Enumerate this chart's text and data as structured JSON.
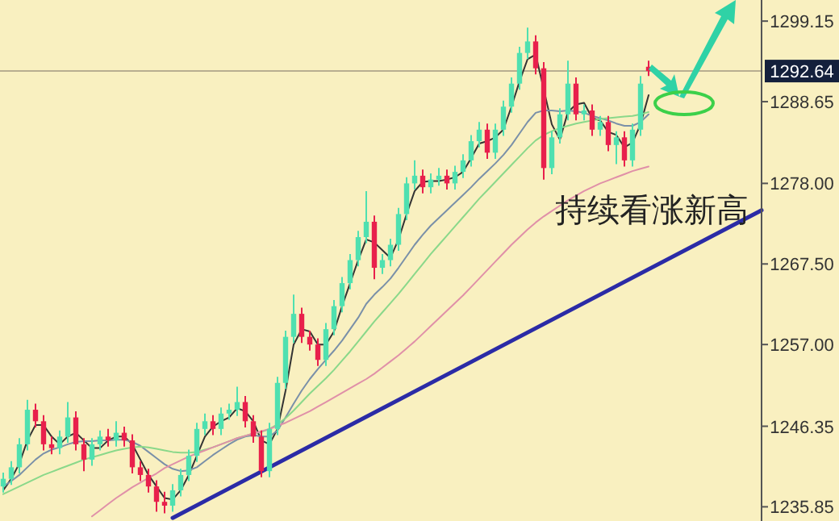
{
  "chart_data": {
    "type": "candlestick",
    "categories": [
      null,
      null,
      null,
      null,
      null,
      null,
      null,
      null,
      null,
      null,
      null,
      null,
      null,
      null,
      null,
      null,
      null,
      null,
      null,
      null,
      null,
      null,
      null,
      null,
      null,
      null,
      null,
      null,
      null,
      null,
      null,
      null,
      null,
      null,
      null,
      null,
      null,
      null,
      null,
      null,
      null,
      null,
      null,
      null,
      null,
      null,
      null,
      null,
      null,
      null,
      null,
      null,
      null,
      null,
      null,
      null,
      null,
      null,
      null,
      null,
      null,
      null,
      null,
      null,
      null,
      null,
      null,
      null,
      null,
      null,
      null,
      null,
      null,
      null,
      null,
      null,
      null,
      null,
      null,
      null,
      null,
      null,
      null,
      null,
      null,
      null,
      null,
      null,
      null,
      null,
      null,
      null,
      null,
      null,
      null
    ],
    "ohlc": [
      [
        1238.5,
        1240.3,
        1237.7,
        1239.5
      ],
      [
        1239.5,
        1241.8,
        1238.7,
        1241
      ],
      [
        1241,
        1244.8,
        1240.2,
        1244
      ],
      [
        1244,
        1249.8,
        1243.2,
        1248.5
      ],
      [
        1248.5,
        1249.3,
        1246.2,
        1247
      ],
      [
        1247,
        1247.8,
        1243.2,
        1244
      ],
      [
        1244,
        1245,
        1242.7,
        1243.5
      ],
      [
        1243.5,
        1245.8,
        1242.7,
        1245
      ],
      [
        1245,
        1249.5,
        1244.2,
        1247.5
      ],
      [
        1247.5,
        1248.3,
        1243.2,
        1244
      ],
      [
        1244,
        1244.8,
        1240.5,
        1242
      ],
      [
        1242,
        1244.8,
        1241.2,
        1244
      ],
      [
        1244,
        1245.8,
        1243.2,
        1245
      ],
      [
        1245,
        1246,
        1243.7,
        1244.5
      ],
      [
        1244.5,
        1247,
        1243.7,
        1245.5
      ],
      [
        1245.5,
        1246.3,
        1243.7,
        1244.5
      ],
      [
        1244.5,
        1245.3,
        1240.2,
        1241
      ],
      [
        1241,
        1241.8,
        1239.2,
        1240
      ],
      [
        1240,
        1240.8,
        1237.7,
        1238.5
      ],
      [
        1238.5,
        1239.3,
        1235.2,
        1236.5
      ],
      [
        1236.5,
        1237.8,
        1235,
        1236
      ],
      [
        1236,
        1238.8,
        1235.2,
        1238
      ],
      [
        1238,
        1240.8,
        1237.2,
        1240
      ],
      [
        1240,
        1243.3,
        1239.2,
        1242.5
      ],
      [
        1242.5,
        1246.8,
        1241.7,
        1246
      ],
      [
        1246,
        1248,
        1245.2,
        1247
      ],
      [
        1247,
        1247.8,
        1245.2,
        1246
      ],
      [
        1246,
        1248.8,
        1245.2,
        1248
      ],
      [
        1248,
        1249.3,
        1247.2,
        1248.5
      ],
      [
        1248.5,
        1251.5,
        1247.7,
        1249.5
      ],
      [
        1249.5,
        1250.3,
        1246.2,
        1247
      ],
      [
        1247,
        1247.8,
        1244.2,
        1245
      ],
      [
        1245,
        1245.8,
        1239.7,
        1240.5
      ],
      [
        1240.5,
        1246.8,
        1239.7,
        1246
      ],
      [
        1246,
        1252.8,
        1245.2,
        1252
      ],
      [
        1252,
        1258.8,
        1251.2,
        1258
      ],
      [
        1258,
        1263.5,
        1257.2,
        1261
      ],
      [
        1261,
        1261.8,
        1257.2,
        1258
      ],
      [
        1258,
        1258.8,
        1256.2,
        1257
      ],
      [
        1257,
        1257.8,
        1254.2,
        1255
      ],
      [
        1255,
        1259.8,
        1254.2,
        1259
      ],
      [
        1259,
        1262.8,
        1258.2,
        1262
      ],
      [
        1262,
        1265.8,
        1261.2,
        1265
      ],
      [
        1265,
        1268.8,
        1264.2,
        1268
      ],
      [
        1268,
        1271.8,
        1267.2,
        1271
      ],
      [
        1271,
        1277,
        1270.2,
        1273
      ],
      [
        1273,
        1273.8,
        1265.5,
        1267
      ],
      [
        1267,
        1268.8,
        1266.2,
        1268
      ],
      [
        1268,
        1270.8,
        1267.2,
        1270
      ],
      [
        1270,
        1274.8,
        1269.2,
        1274
      ],
      [
        1274,
        1278.8,
        1273.2,
        1278
      ],
      [
        1278,
        1281,
        1277.2,
        1279
      ],
      [
        1279,
        1279.8,
        1276.7,
        1277.5
      ],
      [
        1277.5,
        1279.3,
        1276.7,
        1278.5
      ],
      [
        1278.5,
        1280,
        1277.7,
        1279
      ],
      [
        1279,
        1279.8,
        1277.2,
        1278
      ],
      [
        1278,
        1280.3,
        1277.2,
        1279.5
      ],
      [
        1279.5,
        1281.8,
        1278.7,
        1281
      ],
      [
        1281,
        1284.3,
        1280.2,
        1283.5
      ],
      [
        1283.5,
        1286,
        1282.7,
        1285
      ],
      [
        1285,
        1285.8,
        1281.2,
        1282
      ],
      [
        1282,
        1285.8,
        1281.2,
        1285
      ],
      [
        1285,
        1288.8,
        1284.2,
        1288
      ],
      [
        1288,
        1291.8,
        1287.2,
        1291
      ],
      [
        1291,
        1295.8,
        1290.2,
        1295
      ],
      [
        1295,
        1298.3,
        1294.2,
        1296.5
      ],
      [
        1296.5,
        1297.3,
        1292.2,
        1293
      ],
      [
        1293,
        1293.8,
        1278.5,
        1280
      ],
      [
        1280,
        1284.8,
        1279.2,
        1284
      ],
      [
        1284,
        1287.8,
        1283.2,
        1287
      ],
      [
        1287,
        1294,
        1286.2,
        1291
      ],
      [
        1291,
        1291.8,
        1286.2,
        1287
      ],
      [
        1287,
        1288.3,
        1286.2,
        1287.5
      ],
      [
        1287.5,
        1288.3,
        1284.2,
        1285
      ],
      [
        1285,
        1286.8,
        1284.2,
        1286
      ],
      [
        1286,
        1286.8,
        1282.2,
        1283
      ],
      [
        1283,
        1284.8,
        1280.5,
        1284
      ],
      [
        1284,
        1284.8,
        1280.2,
        1281
      ],
      [
        1281,
        1285.8,
        1280.2,
        1285
      ],
      [
        1285,
        1292,
        1284.2,
        1291
      ],
      [
        1293.2,
        1294,
        1292,
        1292.64
      ],
      null,
      null,
      null,
      null,
      null,
      null,
      null,
      null,
      null,
      null,
      null,
      null,
      null,
      null
    ],
    "series": [
      {
        "type": "line",
        "color": "#333333",
        "values": [
          1238,
          1239.5,
          1241.5,
          1244.5,
          1246.5,
          1246.5,
          1245,
          1244,
          1245,
          1245.5,
          1244.5,
          1243.5,
          1243.5,
          1244.5,
          1245,
          1245,
          1244,
          1242,
          1240,
          1238.5,
          1237,
          1236.8,
          1238,
          1240,
          1242.5,
          1245,
          1246.3,
          1247,
          1247.5,
          1248.7,
          1248.3,
          1247,
          1244.5,
          1244,
          1246,
          1251,
          1257,
          1259,
          1258.7,
          1257,
          1257,
          1258.7,
          1262,
          1265,
          1268,
          1270.7,
          1270.3,
          1269.3,
          1268.3,
          1270.7,
          1274,
          1277,
          1278.2,
          1278.3,
          1278.3,
          1278.5,
          1278.8,
          1279.5,
          1281.3,
          1283.2,
          1283.5,
          1284,
          1285,
          1288,
          1291.3,
          1294.2,
          1294.8,
          null,
          1285.7,
          1283.7,
          1287.3,
          1288.3,
          1288.5,
          1286.5,
          1286.2,
          1284.7,
          1284.3,
          1282.7,
          1283.3,
          1285.7,
          1289.5,
          null,
          null,
          null,
          null,
          null,
          null,
          null,
          null,
          null,
          null,
          null,
          null,
          null,
          null
        ]
      },
      {
        "type": "line",
        "color": "#7a90a8",
        "values": [
          1238.5,
          1239.2,
          1240,
          1241,
          1242,
          1242.8,
          1243.3,
          1243.6,
          1244,
          1244.3,
          1244.4,
          1244.4,
          1244.5,
          1244.5,
          1244.6,
          1244.6,
          1244.3,
          1243.8,
          1243,
          1242.2,
          1241.4,
          1240.8,
          1240.5,
          1240.6,
          1241,
          1241.8,
          1242.6,
          1243.3,
          1244,
          1244.6,
          1245,
          1245.2,
          1245,
          1245,
          1245.8,
          1247.5,
          1249.3,
          1251,
          1252.5,
          1253.8,
          1255,
          1256.2,
          1257.5,
          1259,
          1260.5,
          1262.3,
          1263.5,
          1264.5,
          1265.6,
          1267,
          1268.5,
          1270,
          1271.3,
          1272.5,
          1273.5,
          1274.5,
          1275.5,
          1276.5,
          1277.5,
          1278.6,
          1279.6,
          1280.6,
          1281.7,
          1283,
          1284.5,
          1286,
          1287.2,
          1287.5,
          1287.5,
          1287.4,
          1287.5,
          1287.4,
          1287.2,
          1286.8,
          1286.5,
          1286.2,
          1285.8,
          1285.5,
          1285.5,
          1286,
          1287,
          null,
          null,
          null,
          null,
          null,
          null,
          null,
          null,
          null,
          null,
          null,
          null,
          null,
          null
        ]
      },
      {
        "type": "line",
        "color": "#8ad88a",
        "values": [
          1237.5,
          1238,
          1238.5,
          1239,
          1239.5,
          1240,
          1240.4,
          1240.8,
          1241.2,
          1241.6,
          1242,
          1242.3,
          1242.6,
          1242.9,
          1243.2,
          1243.4,
          1243.6,
          1243.7,
          1243.6,
          1243.4,
          1243.2,
          1243,
          1242.9,
          1242.9,
          1243,
          1243.3,
          1243.6,
          1244,
          1244.4,
          1244.8,
          1245.1,
          1245.4,
          1245.6,
          1246,
          1246.6,
          1247.4,
          1248.4,
          1249.5,
          1250.6,
          1251.6,
          1252.6,
          1253.7,
          1254.9,
          1256.1,
          1257.4,
          1258.7,
          1260,
          1261.2,
          1262.4,
          1263.6,
          1264.9,
          1266.2,
          1267.5,
          1268.8,
          1270,
          1271.2,
          1272.4,
          1273.6,
          1274.8,
          1276,
          1277.1,
          1278.2,
          1279.3,
          1280.4,
          1281.5,
          1282.6,
          1283.6,
          1284.3,
          1284.8,
          1285.2,
          1285.5,
          1285.8,
          1286,
          1286.2,
          1286.4,
          1286.5,
          1286.6,
          1286.7,
          1286.8,
          1287,
          1287.3,
          null,
          null,
          null,
          null,
          null,
          null,
          null,
          null,
          null,
          null,
          null,
          null,
          null,
          null
        ]
      },
      {
        "type": "line",
        "color": "#e090a8",
        "values": [
          null,
          null,
          null,
          null,
          null,
          null,
          null,
          null,
          null,
          null,
          null,
          1234.6,
          1235.4,
          1236.2,
          1237,
          1237.7,
          1238.4,
          1239,
          1239.6,
          1240.2,
          1240.9,
          1241.4,
          1241.9,
          1242.4,
          1242.8,
          1243.2,
          1243.6,
          1244,
          1244.4,
          1244.8,
          1245.1,
          1245.4,
          1245.7,
          1246,
          1246.4,
          1246.8,
          1247.3,
          1247.8,
          1248.3,
          1248.9,
          1249.5,
          1250.1,
          1250.7,
          1251.3,
          1251.9,
          1252.5,
          1253.2,
          1254,
          1254.8,
          1255.6,
          1256.5,
          1257.4,
          1258.4,
          1259.4,
          1260.4,
          1261.4,
          1262.4,
          1263.4,
          1264.5,
          1265.6,
          1266.7,
          1267.8,
          1268.9,
          1270,
          1271,
          1272,
          1272.9,
          1273.7,
          1274.4,
          1275.1,
          1275.8,
          1276.4,
          1277,
          1277.5,
          1278,
          1278.4,
          1278.8,
          1279.2,
          1279.6,
          1279.9,
          1280.2,
          null,
          null,
          null,
          null,
          null,
          null,
          null,
          null,
          null,
          null,
          null,
          null,
          null,
          null
        ]
      },
      {
        "type": "line",
        "color": "#2b2ba6",
        "values": [
          null,
          null,
          null,
          null,
          null,
          null,
          null,
          null,
          null,
          null,
          null,
          null,
          null,
          null,
          null,
          null,
          null,
          null,
          null,
          null,
          null,
          1234.4,
          null,
          null,
          null,
          null,
          null,
          null,
          null,
          null,
          null,
          null,
          null,
          null,
          null,
          null,
          null,
          null,
          null,
          null,
          null,
          null,
          null,
          null,
          null,
          null,
          null,
          null,
          null,
          null,
          null,
          null,
          null,
          null,
          null,
          null,
          null,
          null,
          null,
          null,
          null,
          null,
          null,
          null,
          null,
          null,
          null,
          null,
          null,
          null,
          null,
          null,
          null,
          null,
          null,
          null,
          null,
          null,
          null,
          null,
          null,
          null,
          null,
          null,
          null,
          null,
          null,
          null,
          null,
          null,
          null,
          null,
          null,
          null,
          1274.5
        ]
      }
    ],
    "ylim": [
      1234.0,
      1301.9
    ],
    "yticks": [
      1299.15,
      1288.65,
      {
        "value": 1278,
        "label": "1278.00"
      },
      {
        "value": 1267.5,
        "label": "1267.50"
      },
      {
        "value": 1257,
        "label": "1257.00"
      },
      1246.35,
      1235.85
    ],
    "ref_lines": [
      {
        "axis": "y",
        "value": 1292.64,
        "label": "1292.64",
        "color": "#b8ae90"
      }
    ],
    "annotations": [
      "持续看涨新高"
    ],
    "tick_labels": "y"
  }
}
